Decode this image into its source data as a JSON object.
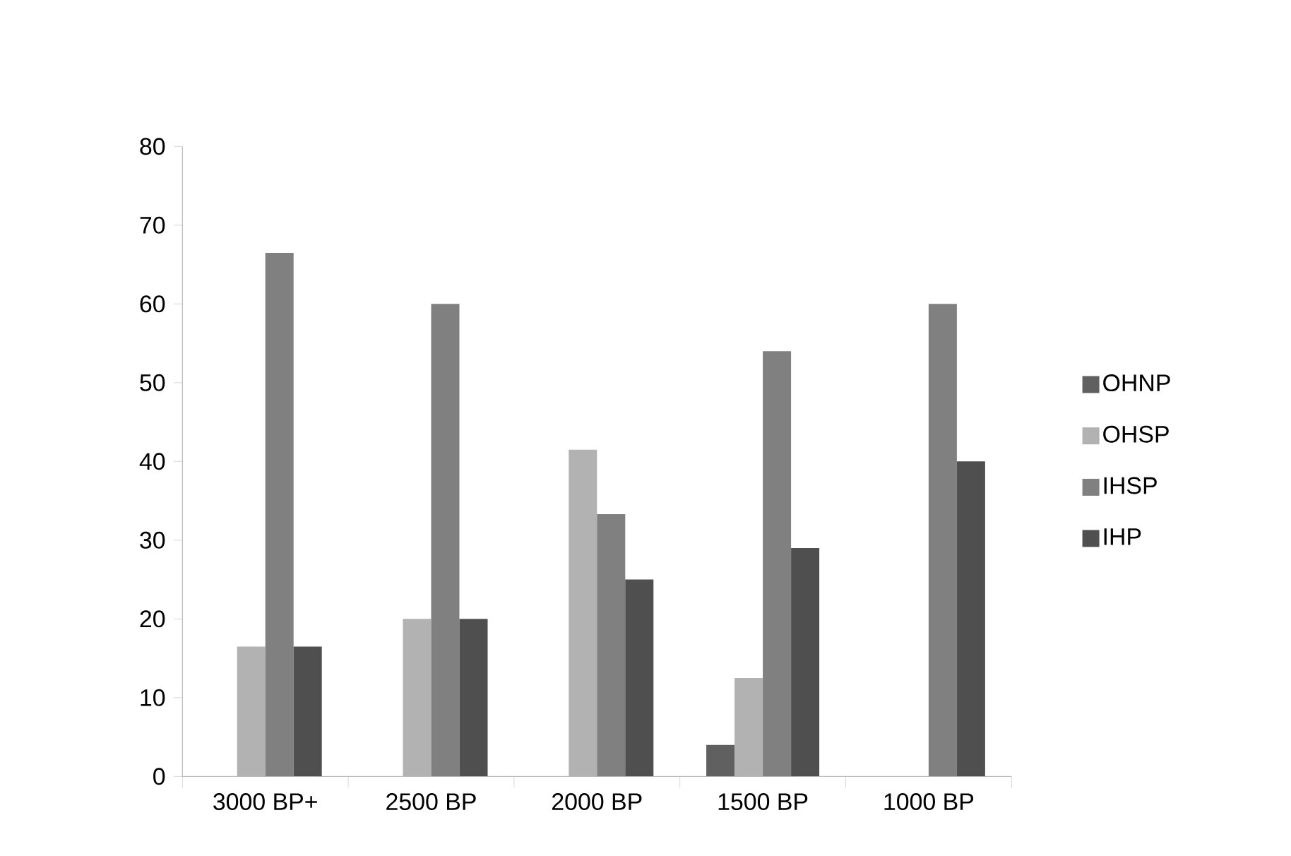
{
  "chart_data": {
    "type": "bar",
    "categories": [
      "3000 BP+",
      "2500 BP",
      "2000 BP",
      "1500 BP",
      "1000 BP"
    ],
    "series": [
      {
        "name": "OHNP",
        "color": "#606060",
        "values": [
          0,
          0,
          0,
          4,
          0
        ]
      },
      {
        "name": "OHSP",
        "color": "#b2b2b2",
        "values": [
          16.5,
          20,
          41.5,
          12.5,
          0
        ]
      },
      {
        "name": "IHSP",
        "color": "#808080",
        "values": [
          66.5,
          60,
          33.3,
          54,
          60
        ]
      },
      {
        "name": "IHP",
        "color": "#4f4f4f",
        "values": [
          16.5,
          20,
          25,
          29,
          40
        ]
      }
    ],
    "ylim": [
      0,
      80
    ],
    "yticks": [
      0,
      10,
      20,
      30,
      40,
      50,
      60,
      70,
      80
    ],
    "grid": false,
    "legend": "right"
  }
}
